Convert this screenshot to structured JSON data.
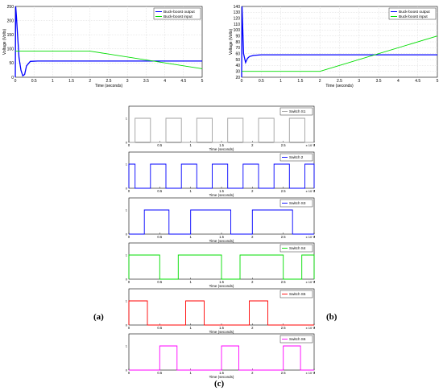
{
  "captions": {
    "a": "(a)",
    "b": "(b)",
    "c": "(c)"
  },
  "colors": {
    "blue": "#0000ff",
    "green": "#00dd00",
    "red": "#ff0000",
    "magenta": "#ff00ff",
    "gray": "#a0a0a0"
  },
  "chart_data": [
    {
      "type": "line",
      "xlabel": "Time (seconds)",
      "ylabel": "Voltage (Volts)",
      "xlim": [
        0,
        5
      ],
      "ylim": [
        0,
        250
      ],
      "xticks": [
        "0",
        "0.5",
        "1",
        "1.5",
        "2",
        "2.5",
        "3",
        "3.5",
        "4",
        "4.5",
        "5"
      ],
      "yticks": [
        "0",
        "50",
        "100",
        "150",
        "200",
        "250"
      ],
      "legend_position": "top-right",
      "grid": true,
      "series": [
        {
          "name": "Buck-boost output",
          "color": "#0000ff",
          "x": [
            0,
            0.01,
            0.03,
            0.06,
            0.1,
            0.15,
            0.2,
            0.25,
            0.3,
            0.4,
            0.6,
            1,
            2,
            3,
            4,
            5
          ],
          "y": [
            0,
            250,
            215,
            150,
            70,
            25,
            5,
            10,
            40,
            56,
            57,
            57,
            57,
            57,
            57,
            57
          ]
        },
        {
          "name": "Buck-boost input",
          "color": "#00dd00",
          "x": [
            0,
            2,
            5
          ],
          "y": [
            92,
            92,
            30
          ]
        }
      ]
    },
    {
      "type": "line",
      "xlabel": "Time (seconds)",
      "ylabel": "Voltage (Volts)",
      "xlim": [
        0,
        5
      ],
      "ylim": [
        20,
        140
      ],
      "xticks": [
        "0",
        "0.5",
        "1",
        "1.5",
        "2",
        "2.5",
        "3",
        "3.5",
        "4",
        "4.5",
        "5"
      ],
      "yticks": [
        "20",
        "30",
        "40",
        "50",
        "60",
        "70",
        "80",
        "90",
        "100",
        "110",
        "120",
        "130",
        "140"
      ],
      "legend_position": "top-right",
      "grid": true,
      "series": [
        {
          "name": "Buck-boost output",
          "color": "#0000ff",
          "x": [
            0,
            0.01,
            0.05,
            0.1,
            0.15,
            0.2,
            0.3,
            0.5,
            1,
            2,
            3,
            4,
            5
          ],
          "y": [
            20,
            140,
            60,
            45,
            52,
            55,
            57,
            58,
            58,
            58,
            58,
            58,
            58
          ]
        },
        {
          "name": "Buck-boost input",
          "color": "#00dd00",
          "x": [
            0,
            2,
            5
          ],
          "y": [
            30,
            30,
            90
          ]
        }
      ]
    },
    {
      "type": "step",
      "xlabel": "Time (seconds)",
      "xlim": [
        0,
        3
      ],
      "x_exponent": "x 10⁻⁴",
      "ylim": [
        0,
        1.5
      ],
      "xticks": [
        "0",
        "0.5",
        "1",
        "1.5",
        "2",
        "2.5",
        "3"
      ],
      "ytick_labels": [
        "0",
        "1"
      ],
      "legend_position": "top-right",
      "period": 0.5,
      "series": [
        {
          "name": "Switch S1",
          "color": "#a0a0a0",
          "pulses": [
            [
              0.1,
              0.35
            ],
            [
              0.6,
              0.85
            ],
            [
              1.1,
              1.35
            ],
            [
              1.6,
              1.85
            ],
            [
              2.1,
              2.35
            ],
            [
              2.6,
              2.85
            ]
          ]
        },
        {
          "name": "Switch 2",
          "color": "#0000ff",
          "pulses": [
            [
              0,
              0.1
            ],
            [
              0.35,
              0.6
            ],
            [
              0.85,
              1.1
            ],
            [
              1.35,
              1.6
            ],
            [
              1.85,
              2.1
            ],
            [
              2.35,
              2.6
            ],
            [
              2.85,
              3
            ]
          ]
        },
        {
          "name": "Switch S3",
          "color": "#0000ff",
          "pulses": [
            [
              0.25,
              0.65
            ],
            [
              1.0,
              1.65
            ],
            [
              2.0,
              2.65
            ]
          ]
        },
        {
          "name": "Switch S4",
          "color": "#00dd00",
          "pulses": [
            [
              0,
              0.5
            ],
            [
              0.8,
              1.5
            ],
            [
              1.8,
              2.5
            ],
            [
              2.8,
              3
            ]
          ]
        },
        {
          "name": "Switch S5",
          "color": "#ff0000",
          "pulses": [
            [
              0,
              0.3
            ],
            [
              0.92,
              1.22
            ],
            [
              1.95,
              2.25
            ]
          ]
        },
        {
          "name": "Switch S6",
          "color": "#ff00ff",
          "pulses": [
            [
              0.5,
              0.78
            ],
            [
              1.5,
              1.78
            ],
            [
              2.5,
              2.78
            ]
          ]
        }
      ]
    }
  ]
}
